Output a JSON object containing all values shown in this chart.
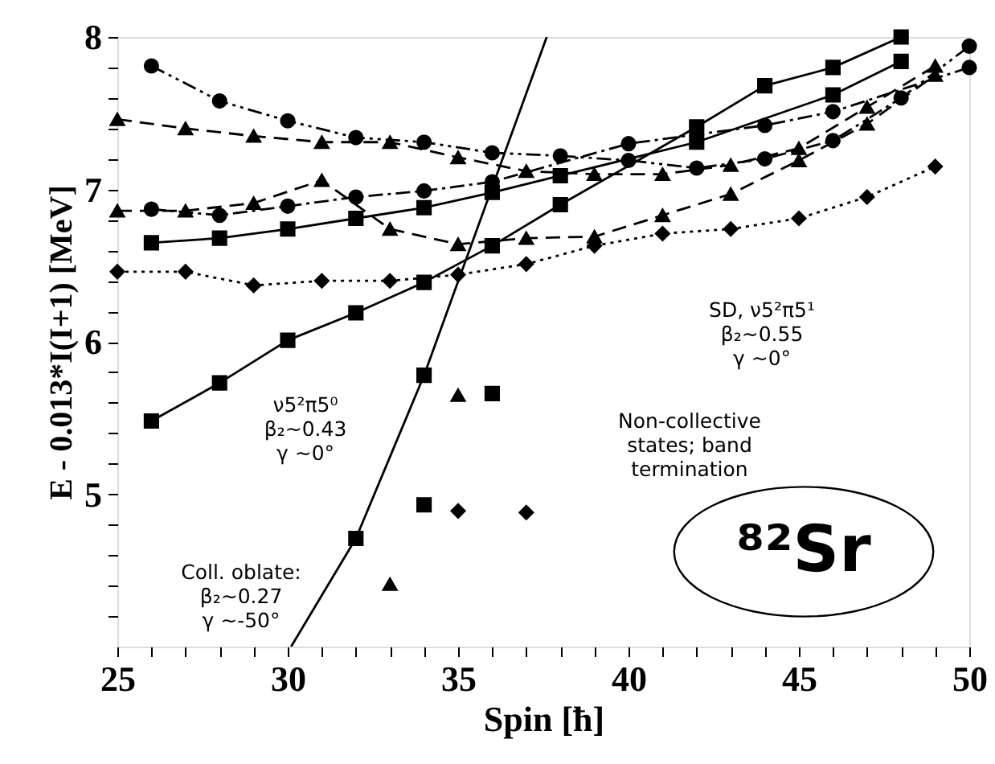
{
  "chart_data": {
    "type": "line",
    "xlabel": "Spin [ħ]",
    "ylabel": "E - 0.013*I(I+1)  [MeV]",
    "xlim": [
      25,
      50
    ],
    "ylim": [
      4,
      8
    ],
    "xticks": [
      25,
      {
        "value": 26,
        "label": null
      },
      {
        "value": 27,
        "label": null
      },
      {
        "value": 28,
        "label": null
      },
      {
        "value": 29,
        "label": null
      },
      30,
      {
        "value": 31,
        "label": null
      },
      {
        "value": 32,
        "label": null
      },
      {
        "value": 33,
        "label": null
      },
      {
        "value": 34,
        "label": null
      },
      35,
      {
        "value": 36,
        "label": null
      },
      {
        "value": 37,
        "label": null
      },
      {
        "value": 38,
        "label": null
      },
      {
        "value": 39,
        "label": null
      },
      40,
      {
        "value": 41,
        "label": null
      },
      {
        "value": 42,
        "label": null
      },
      {
        "value": 43,
        "label": null
      },
      {
        "value": 44,
        "label": null
      },
      45,
      {
        "value": 46,
        "label": null
      },
      {
        "value": 47,
        "label": null
      },
      {
        "value": 48,
        "label": null
      },
      {
        "value": 49,
        "label": null
      },
      50
    ],
    "yticks": [
      {
        "value": 4.2,
        "label": null
      },
      {
        "value": 4.4,
        "label": null
      },
      {
        "value": 4.6,
        "label": null
      },
      {
        "value": 4.8,
        "label": null
      },
      5,
      {
        "value": 5.2,
        "label": null
      },
      {
        "value": 5.4,
        "label": null
      },
      {
        "value": 5.6,
        "label": null
      },
      {
        "value": 5.8,
        "label": null
      },
      6,
      {
        "value": 6.2,
        "label": null
      },
      {
        "value": 6.4,
        "label": null
      },
      {
        "value": 6.6,
        "label": null
      },
      {
        "value": 6.8,
        "label": null
      },
      7,
      {
        "value": 7.2,
        "label": null
      },
      {
        "value": 7.4,
        "label": null
      },
      {
        "value": 7.6,
        "label": null
      },
      {
        "value": 7.8,
        "label": null
      },
      8
    ],
    "grid": false,
    "series": [
      {
        "color": "#000000",
        "marker": "circle",
        "line_style": "dashdotdot",
        "x": [
          26,
          28,
          30,
          32,
          34,
          36,
          38,
          40,
          42,
          44,
          46,
          48,
          50
        ],
        "values": [
          7.81,
          7.58,
          7.45,
          7.34,
          7.31,
          7.24,
          7.22,
          7.19,
          7.14,
          7.2,
          7.32,
          7.6,
          7.94
        ]
      },
      {
        "color": "#000000",
        "marker": "triangle",
        "line_style": "dashed",
        "x": [
          25,
          27,
          29,
          31,
          33,
          35,
          37,
          39,
          41,
          43,
          45,
          47,
          49
        ],
        "values": [
          7.46,
          7.4,
          7.35,
          7.31,
          7.31,
          7.21,
          7.12,
          7.1,
          7.1,
          7.16,
          7.27,
          7.54,
          7.81
        ]
      },
      {
        "color": "#000000",
        "marker": "circle",
        "line_style": "dashdot",
        "x": [
          26,
          28,
          30,
          32,
          34,
          36,
          40,
          44,
          46,
          50
        ],
        "values": [
          6.87,
          6.83,
          6.89,
          6.95,
          6.99,
          7.05,
          7.3,
          7.42,
          7.51,
          7.8
        ]
      },
      {
        "color": "#000000",
        "marker": "triangle",
        "line_style": "dashed",
        "x": [
          25,
          27,
          29,
          31,
          33,
          35,
          37,
          39,
          41,
          43,
          45,
          47,
          49
        ],
        "values": [
          6.86,
          6.86,
          6.91,
          7.06,
          6.74,
          6.64,
          6.68,
          6.69,
          6.83,
          6.97,
          7.19,
          7.43,
          7.75
        ]
      },
      {
        "color": "#000000",
        "marker": "square",
        "line_style": "solid",
        "x": [
          26,
          28,
          30,
          32,
          34,
          36,
          38,
          42,
          46,
          48
        ],
        "values": [
          6.65,
          6.68,
          6.74,
          6.81,
          6.88,
          6.98,
          7.09,
          7.31,
          7.62,
          7.84
        ]
      },
      {
        "color": "#000000",
        "marker": "square",
        "line_style": "solid",
        "x": [
          26,
          28,
          30,
          32,
          34,
          36,
          38,
          42,
          44,
          46,
          48
        ],
        "values": [
          5.48,
          5.73,
          6.01,
          6.19,
          6.39,
          6.63,
          6.9,
          7.41,
          7.68,
          7.8,
          8.0
        ]
      },
      {
        "color": "#000000",
        "marker": "diamond",
        "line_style": "dotted",
        "x": [
          25,
          27,
          29,
          31,
          33,
          35,
          37,
          39,
          41,
          43,
          45,
          47,
          49
        ],
        "values": [
          6.46,
          6.46,
          6.37,
          6.4,
          6.4,
          6.44,
          6.51,
          6.63,
          6.71,
          6.74,
          6.81,
          6.95,
          7.15
        ]
      },
      {
        "color": "#000000",
        "marker": "none",
        "line_style": "solid",
        "x": [
          30.1,
          32,
          34,
          37.6
        ],
        "values": [
          4.0,
          4.71,
          5.78,
          8.0
        ]
      },
      {
        "type": "scatter",
        "color": "#000000",
        "marker": "square",
        "x": [
          32,
          34
        ],
        "values": [
          4.71,
          5.78
        ]
      },
      {
        "type": "scatter",
        "color": "#000000",
        "marker": "triangle",
        "x": [
          35,
          33
        ],
        "values": [
          5.65,
          4.41
        ]
      },
      {
        "type": "scatter",
        "color": "#000000",
        "marker": "square",
        "x": [
          36,
          34
        ],
        "values": [
          5.66,
          4.93
        ]
      },
      {
        "type": "scatter",
        "color": "#000000",
        "marker": "diamond",
        "x": [
          35,
          37
        ],
        "values": [
          4.89,
          4.88
        ]
      }
    ],
    "annotations": [
      "ν5²π5⁰\nβ₂~0.43\nγ ~0°",
      "Coll. oblate:\nβ₂~0.27\nγ ~-50°",
      "SD, ν5²π5¹\nβ₂~0.55\nγ ~0°",
      "Non-collective\nstates; band\ntermination",
      "⁸²Sr"
    ]
  }
}
